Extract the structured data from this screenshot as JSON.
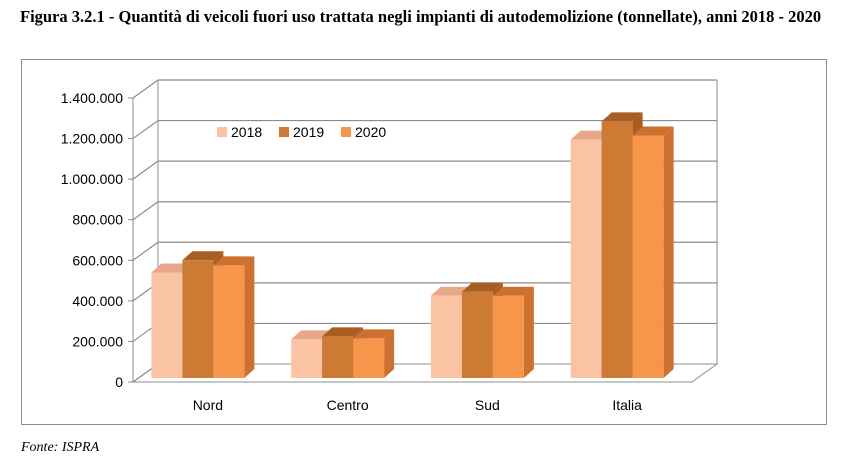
{
  "figure": {
    "title": "Figura 3.2.1 - Quantità di veicoli fuori uso trattata negli impianti di autodemolizione (tonnellate), anni 2018 - 2020",
    "source": "Fonte: ISPRA"
  },
  "chart_data": {
    "type": "bar",
    "categories": [
      "Nord",
      "Centro",
      "Sud",
      "Italia"
    ],
    "series": [
      {
        "name": "2018",
        "values": [
          540000,
          210000,
          425000,
          1195000
        ],
        "color": "#fac4a4",
        "side": "#e6a889"
      },
      {
        "name": "2019",
        "values": [
          600000,
          225000,
          445000,
          1285000
        ],
        "color": "#cd7a34",
        "side": "#a85e22"
      },
      {
        "name": "2020",
        "values": [
          575000,
          215000,
          425000,
          1215000
        ],
        "color": "#f7954a",
        "side": "#cc7130"
      }
    ],
    "ylim": [
      0,
      1400000
    ],
    "yticks": [
      "0",
      "200.000",
      "400.000",
      "600.000",
      "800.000",
      "1.000.000",
      "1.200.000",
      "1.400.000"
    ],
    "legend_position": "top-left",
    "grid": true
  }
}
